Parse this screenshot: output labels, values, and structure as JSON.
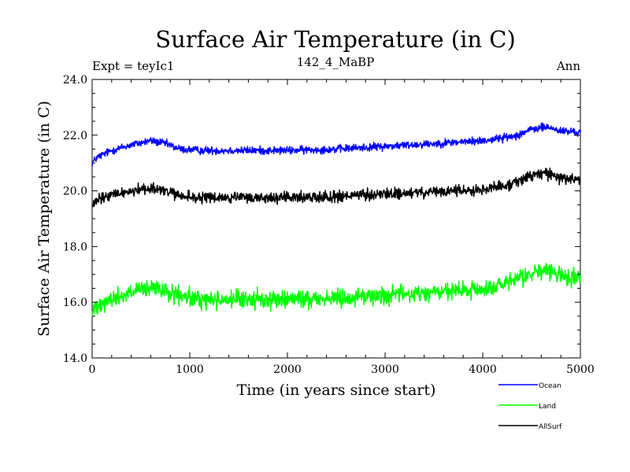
{
  "chart_data": {
    "type": "line",
    "title": "Surface Air Temperature (in C)",
    "subtitle_left": "Expt = teyIc1",
    "subtitle_center": "142_4_MaBP",
    "subtitle_right": "Ann",
    "xlabel": "Time (in years since start)",
    "ylabel": "Surface Air Temperature (in C)",
    "xlim": [
      0,
      5000
    ],
    "ylim": [
      14.0,
      24.0
    ],
    "x_ticks": [
      0,
      1000,
      2000,
      3000,
      4000,
      5000
    ],
    "x_tick_labels": [
      "0",
      "1000",
      "2000",
      "3000",
      "4000",
      "5000"
    ],
    "y_ticks": [
      14.0,
      16.0,
      18.0,
      20.0,
      22.0,
      24.0
    ],
    "y_tick_labels": [
      "14.0",
      "16.0",
      "18.0",
      "20.0",
      "22.0",
      "24.0"
    ],
    "grid": false,
    "legend_position": "bottom-right, outside plot",
    "series": [
      {
        "name": "Ocean",
        "color": "#0000ff",
        "noise_amplitude": 0.07,
        "x": [
          0,
          50,
          200,
          400,
          600,
          750,
          900,
          1100,
          1500,
          2000,
          2500,
          3000,
          3500,
          4000,
          4300,
          4500,
          4650,
          4800,
          5000
        ],
        "values": [
          21.0,
          21.2,
          21.45,
          21.65,
          21.8,
          21.7,
          21.5,
          21.45,
          21.45,
          21.45,
          21.5,
          21.6,
          21.7,
          21.8,
          21.95,
          22.2,
          22.3,
          22.15,
          22.1
        ]
      },
      {
        "name": "Land",
        "color": "#00ff00",
        "noise_amplitude": 0.16,
        "x": [
          0,
          50,
          200,
          400,
          600,
          750,
          900,
          1100,
          1500,
          2000,
          2500,
          3000,
          3500,
          4000,
          4300,
          4500,
          4650,
          4800,
          5000
        ],
        "values": [
          15.6,
          15.95,
          16.1,
          16.35,
          16.5,
          16.4,
          16.2,
          16.1,
          16.1,
          16.1,
          16.15,
          16.25,
          16.35,
          16.45,
          16.7,
          17.05,
          17.15,
          16.95,
          16.85
        ]
      },
      {
        "name": "AllSurf",
        "color": "#000000",
        "noise_amplitude": 0.1,
        "x": [
          0,
          50,
          200,
          400,
          600,
          750,
          900,
          1100,
          1500,
          2000,
          2500,
          3000,
          3500,
          4000,
          4300,
          4500,
          4650,
          4800,
          5000
        ],
        "values": [
          19.4,
          19.65,
          19.85,
          20.0,
          20.1,
          20.0,
          19.8,
          19.75,
          19.75,
          19.75,
          19.8,
          19.88,
          19.95,
          20.05,
          20.25,
          20.55,
          20.65,
          20.45,
          20.4
        ]
      }
    ]
  }
}
